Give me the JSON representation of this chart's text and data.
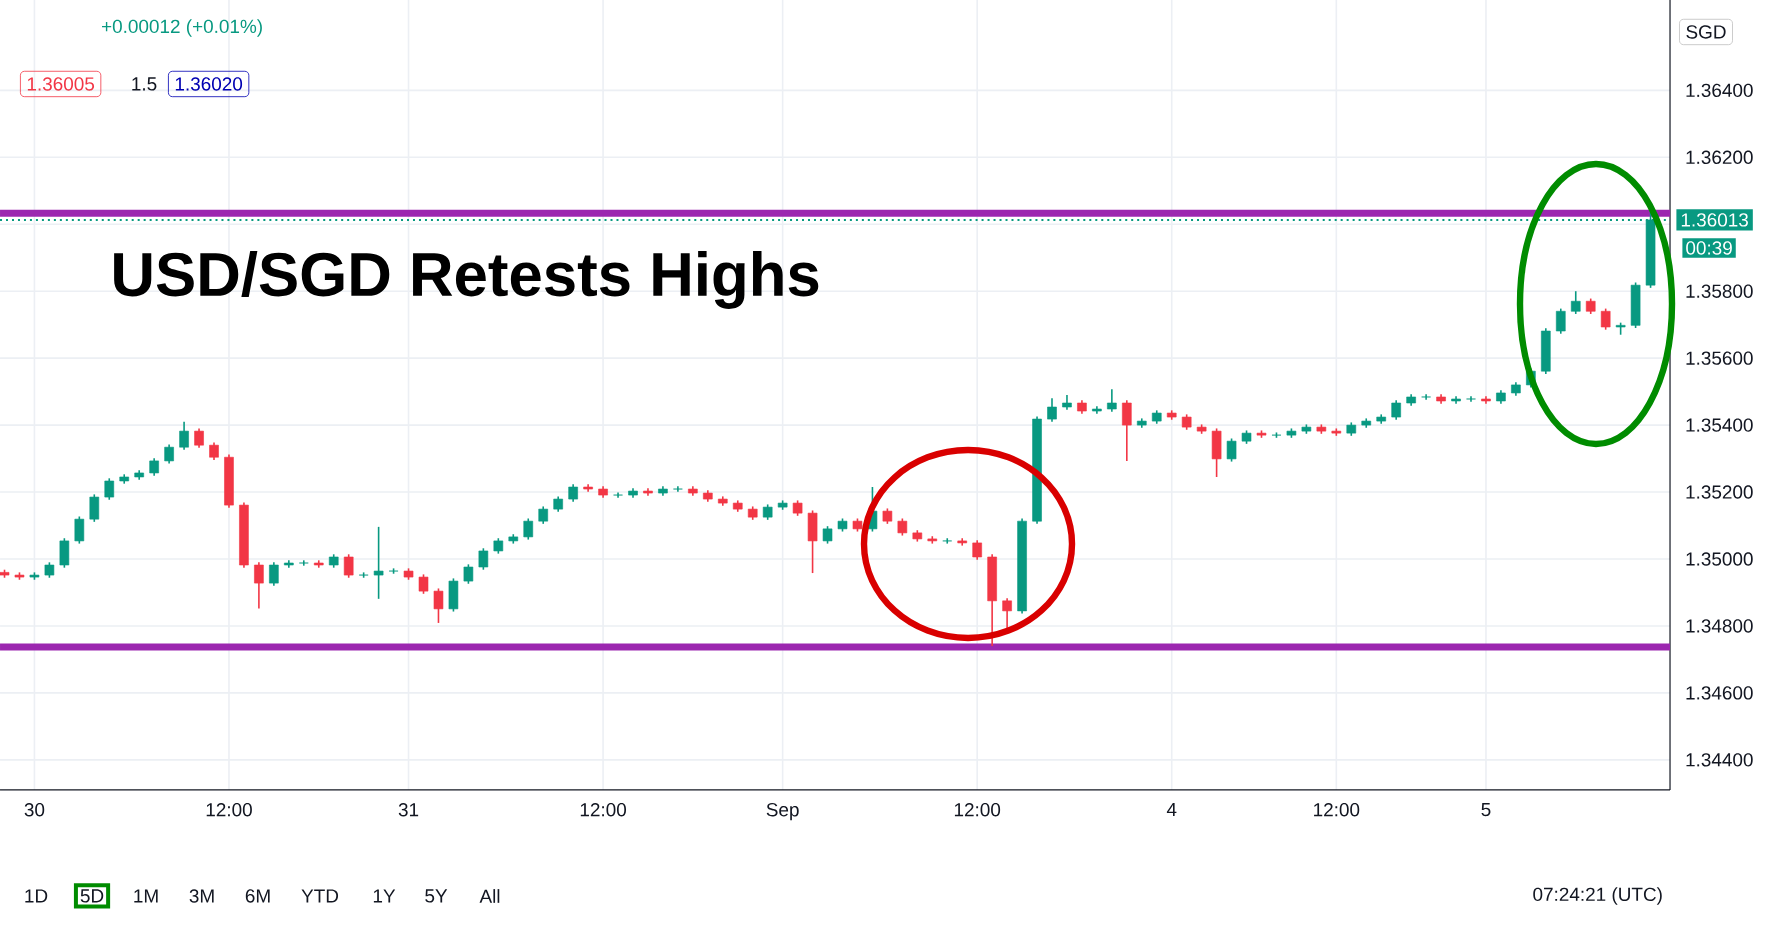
{
  "chart_data": {
    "type": "candlestick",
    "title": "USD/SGD Retests Highs",
    "categories": [
      null,
      null,
      "30",
      null,
      null,
      null,
      null,
      null,
      null,
      null,
      null,
      null,
      null,
      null,
      null,
      "12:00",
      null,
      null,
      null,
      null,
      null,
      null,
      null,
      null,
      null,
      null,
      null,
      "31",
      null,
      null,
      null,
      null,
      null,
      null,
      null,
      null,
      null,
      null,
      null,
      null,
      "12:00",
      null,
      null,
      null,
      null,
      null,
      null,
      null,
      null,
      null,
      null,
      null,
      "Sep",
      null,
      null,
      null,
      null,
      null,
      null,
      null,
      null,
      null,
      null,
      null,
      null,
      "12:00",
      null,
      null,
      null,
      null,
      null,
      null,
      null,
      null,
      null,
      null,
      null,
      null,
      "4",
      null,
      null,
      null,
      null,
      null,
      null,
      null,
      null,
      null,
      null,
      "12:00",
      null,
      null,
      null,
      null,
      null,
      null,
      null,
      null,
      null,
      "5",
      null,
      null,
      null,
      null,
      null,
      null,
      null,
      null,
      null,
      null,
      null
    ],
    "ohlc": [
      [
        1.3496,
        1.34968,
        1.34944,
        1.34952
      ],
      [
        1.34952,
        1.3496,
        1.34938,
        1.34946
      ],
      [
        1.34946,
        1.3496,
        1.34938,
        1.34952
      ],
      [
        1.34952,
        1.3499,
        1.34944,
        1.34982
      ],
      [
        1.34982,
        1.35062,
        1.34974,
        1.35054
      ],
      [
        1.35054,
        1.35127,
        1.35046,
        1.35119
      ],
      [
        1.35119,
        1.35193,
        1.35111,
        1.35185
      ],
      [
        1.35185,
        1.35241,
        1.35177,
        1.35233
      ],
      [
        1.35233,
        1.35253,
        1.35225,
        1.35245
      ],
      [
        1.35245,
        1.35265,
        1.35237,
        1.35257
      ],
      [
        1.35257,
        1.35301,
        1.35249,
        1.35293
      ],
      [
        1.35293,
        1.35342,
        1.35285,
        1.35334
      ],
      [
        1.35334,
        1.3541,
        1.35326,
        1.35382
      ],
      [
        1.35382,
        1.3539,
        1.35332,
        1.3534
      ],
      [
        1.3534,
        1.35348,
        1.35296,
        1.35304
      ],
      [
        1.35304,
        1.35312,
        1.35153,
        1.35161
      ],
      [
        1.35161,
        1.35169,
        1.34974,
        1.34982
      ],
      [
        1.34982,
        1.3499,
        1.34852,
        1.34928
      ],
      [
        1.34928,
        1.3499,
        1.3492,
        1.34982
      ],
      [
        1.34982,
        1.34996,
        1.34974,
        1.34988
      ],
      [
        1.34988,
        1.34996,
        1.3498,
        1.34988
      ],
      [
        1.34988,
        1.34996,
        1.34974,
        1.34982
      ],
      [
        1.34982,
        1.35014,
        1.34974,
        1.35006
      ],
      [
        1.35006,
        1.35014,
        1.34944,
        1.34952
      ],
      [
        1.34952,
        1.3496,
        1.34944,
        1.34952
      ],
      [
        1.34952,
        1.35096,
        1.34881,
        1.34964
      ],
      [
        1.34964,
        1.34972,
        1.34956,
        1.34964
      ],
      [
        1.34964,
        1.34972,
        1.34938,
        1.34946
      ],
      [
        1.34946,
        1.34954,
        1.34896,
        1.34904
      ],
      [
        1.34904,
        1.34912,
        1.34809,
        1.34851
      ],
      [
        1.34851,
        1.34942,
        1.34843,
        1.34934
      ],
      [
        1.34934,
        1.34984,
        1.34926,
        1.34976
      ],
      [
        1.34976,
        1.35032,
        1.34968,
        1.35024
      ],
      [
        1.35024,
        1.35062,
        1.35016,
        1.35054
      ],
      [
        1.35054,
        1.35074,
        1.35046,
        1.35066
      ],
      [
        1.35066,
        1.35121,
        1.35058,
        1.35113
      ],
      [
        1.35113,
        1.35157,
        1.35105,
        1.35149
      ],
      [
        1.35149,
        1.35187,
        1.35141,
        1.35179
      ],
      [
        1.35179,
        1.35223,
        1.35171,
        1.35215
      ],
      [
        1.35215,
        1.35223,
        1.35201,
        1.35209
      ],
      [
        1.35209,
        1.35217,
        1.35183,
        1.35191
      ],
      [
        1.35191,
        1.35199,
        1.35183,
        1.35191
      ],
      [
        1.35191,
        1.35211,
        1.35183,
        1.35203
      ],
      [
        1.35203,
        1.35211,
        1.35189,
        1.35197
      ],
      [
        1.35197,
        1.35217,
        1.35189,
        1.35209
      ],
      [
        1.35209,
        1.35217,
        1.35201,
        1.35209
      ],
      [
        1.35209,
        1.35217,
        1.35189,
        1.35197
      ],
      [
        1.35197,
        1.35205,
        1.35171,
        1.35179
      ],
      [
        1.35179,
        1.35187,
        1.35159,
        1.35167
      ],
      [
        1.35167,
        1.35175,
        1.35141,
        1.35149
      ],
      [
        1.35149,
        1.35157,
        1.35117,
        1.35125
      ],
      [
        1.35125,
        1.35163,
        1.35117,
        1.35155
      ],
      [
        1.35155,
        1.35175,
        1.35147,
        1.35167
      ],
      [
        1.35167,
        1.35175,
        1.35129,
        1.35137
      ],
      [
        1.35137,
        1.35145,
        1.34958,
        1.35054
      ],
      [
        1.35054,
        1.35098,
        1.35046,
        1.3509
      ],
      [
        1.3509,
        1.35121,
        1.35082,
        1.35113
      ],
      [
        1.35113,
        1.35121,
        1.35082,
        1.3509
      ],
      [
        1.3509,
        1.35215,
        1.35082,
        1.35143
      ],
      [
        1.35143,
        1.35151,
        1.35105,
        1.35113
      ],
      [
        1.35113,
        1.35121,
        1.3507,
        1.35078
      ],
      [
        1.35078,
        1.35086,
        1.35052,
        1.3506
      ],
      [
        1.3506,
        1.35068,
        1.35046,
        1.35054
      ],
      [
        1.35054,
        1.35062,
        1.35046,
        1.35054
      ],
      [
        1.35054,
        1.35062,
        1.3504,
        1.35048
      ],
      [
        1.35048,
        1.35056,
        1.34998,
        1.35006
      ],
      [
        1.35006,
        1.35014,
        1.3474,
        1.34875
      ],
      [
        1.34875,
        1.34883,
        1.3478,
        1.34845
      ],
      [
        1.34845,
        1.35121,
        1.34837,
        1.35113
      ],
      [
        1.35113,
        1.35426,
        1.35105,
        1.35418
      ],
      [
        1.35418,
        1.3548,
        1.3541,
        1.35454
      ],
      [
        1.35454,
        1.3549,
        1.35446,
        1.35466
      ],
      [
        1.35466,
        1.35474,
        1.35434,
        1.35442
      ],
      [
        1.35442,
        1.35456,
        1.35434,
        1.35448
      ],
      [
        1.35448,
        1.35507,
        1.3544,
        1.35466
      ],
      [
        1.35466,
        1.35474,
        1.35293,
        1.354
      ],
      [
        1.354,
        1.3542,
        1.35392,
        1.35412
      ],
      [
        1.35412,
        1.35444,
        1.35404,
        1.35436
      ],
      [
        1.35436,
        1.35444,
        1.35416,
        1.35424
      ],
      [
        1.35424,
        1.35432,
        1.35386,
        1.35394
      ],
      [
        1.35394,
        1.35402,
        1.35374,
        1.35382
      ],
      [
        1.35382,
        1.3539,
        1.35245,
        1.35299
      ],
      [
        1.35299,
        1.3536,
        1.35291,
        1.35352
      ],
      [
        1.35352,
        1.35384,
        1.35344,
        1.35376
      ],
      [
        1.35376,
        1.35384,
        1.35362,
        1.3537
      ],
      [
        1.3537,
        1.35378,
        1.35362,
        1.3537
      ],
      [
        1.3537,
        1.3539,
        1.35362,
        1.35382
      ],
      [
        1.35382,
        1.35402,
        1.35374,
        1.35394
      ],
      [
        1.35394,
        1.35402,
        1.35374,
        1.35382
      ],
      [
        1.35382,
        1.3539,
        1.35368,
        1.35376
      ],
      [
        1.35376,
        1.35408,
        1.35368,
        1.354
      ],
      [
        1.354,
        1.3542,
        1.35392,
        1.35412
      ],
      [
        1.35412,
        1.35432,
        1.35404,
        1.35424
      ],
      [
        1.35424,
        1.35474,
        1.35416,
        1.35466
      ],
      [
        1.35466,
        1.35492,
        1.35458,
        1.35484
      ],
      [
        1.35484,
        1.35492,
        1.35476,
        1.35484
      ],
      [
        1.35484,
        1.35492,
        1.35464,
        1.35472
      ],
      [
        1.35472,
        1.35486,
        1.35464,
        1.35478
      ],
      [
        1.35478,
        1.35486,
        1.3547,
        1.35478
      ],
      [
        1.35478,
        1.35486,
        1.35464,
        1.35472
      ],
      [
        1.35472,
        1.35504,
        1.35464,
        1.35496
      ],
      [
        1.35496,
        1.35528,
        1.35488,
        1.3552
      ],
      [
        1.3552,
        1.35569,
        1.35512,
        1.35561
      ],
      [
        1.35561,
        1.35689,
        1.35553,
        1.35681
      ],
      [
        1.35681,
        1.35748,
        1.35673,
        1.3574
      ],
      [
        1.3574,
        1.358,
        1.35732,
        1.3577
      ],
      [
        1.3577,
        1.35778,
        1.35732,
        1.3574
      ],
      [
        1.3574,
        1.35748,
        1.35685,
        1.35693
      ],
      [
        1.35693,
        1.35706,
        1.3567,
        1.35698
      ],
      [
        1.35698,
        1.35826,
        1.3569,
        1.35818
      ],
      [
        1.35818,
        1.3604,
        1.3581,
        1.36013
      ]
    ],
    "ylim": [
      1.3431,
      1.3667
    ],
    "yticks": [
      {
        "value": 1.344,
        "label": "1.34400"
      },
      {
        "value": 1.346,
        "label": "1.34600"
      },
      {
        "value": 1.348,
        "label": "1.34800"
      },
      {
        "value": 1.35,
        "label": "1.35000"
      },
      {
        "value": 1.352,
        "label": "1.35200"
      },
      {
        "value": 1.354,
        "label": "1.35400"
      },
      {
        "value": 1.356,
        "label": "1.35600"
      },
      {
        "value": 1.358,
        "label": "1.35800"
      },
      {
        "value": 1.36,
        "label": null
      },
      {
        "value": 1.362,
        "label": "1.36200"
      },
      {
        "value": 1.364,
        "label": "1.36400"
      }
    ],
    "grid": true,
    "ref_lines": [
      {
        "axis": "y",
        "value": 1.36033,
        "color": "#9c27b0"
      },
      {
        "axis": "y",
        "value": 1.34737,
        "color": "#9c27b0"
      },
      {
        "axis": "y",
        "value": 1.36013,
        "label": "1.36013",
        "color": "#089981",
        "line_style": "dotted"
      }
    ],
    "annotations": [
      "+0.00012 (+0.01%)",
      "1.36005",
      "1.5",
      "1.36020",
      "SGD",
      "00:39",
      "1D",
      "5D",
      "1M",
      "3M",
      "6M",
      "YTD",
      "1Y",
      "5Y",
      "All",
      "07:24:21 (UTC)"
    ]
  }
}
